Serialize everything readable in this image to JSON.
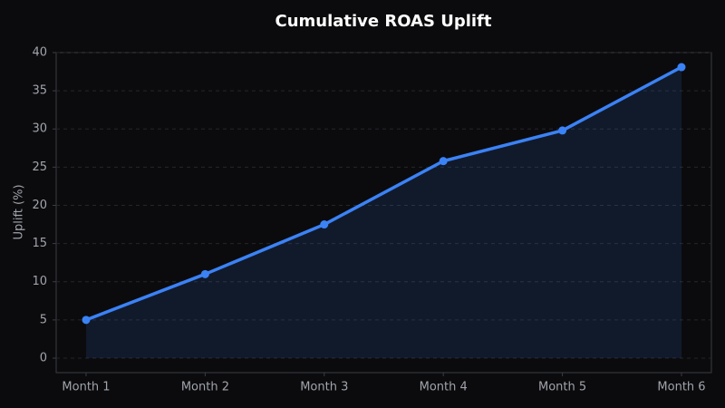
{
  "chart_data": {
    "type": "line",
    "title": "Cumulative ROAS Uplift",
    "y_label": "Uplift (%)",
    "categories": [
      "Month 1",
      "Month 2",
      "Month 3",
      "Month 4",
      "Month 5",
      "Month 6"
    ],
    "series": [
      {
        "name": "Cumulative ROAS Uplift",
        "color": "#3b82f6",
        "values": [
          5.0,
          11.0,
          17.5,
          25.8,
          29.8,
          38.1
        ]
      }
    ],
    "ylim": [
      -1.9,
      40
    ],
    "yticks": [
      0,
      5,
      10,
      15,
      20,
      25,
      30,
      35,
      40
    ],
    "grid": true,
    "area_fill": true
  }
}
